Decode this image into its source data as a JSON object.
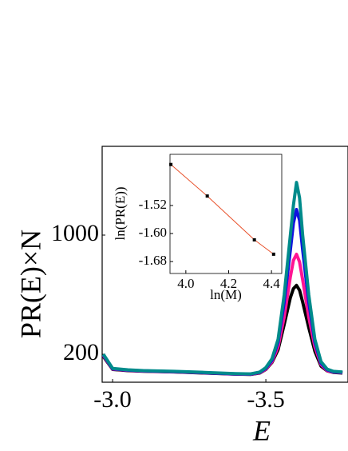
{
  "chart_data": [
    {
      "type": "line",
      "xlabel": "E",
      "ylabel": "PR(E)×N",
      "x": [
        -2.97,
        -3.0,
        -3.05,
        -3.1,
        -3.2,
        -3.3,
        -3.4,
        -3.45,
        -3.48,
        -3.5,
        -3.52,
        -3.54,
        -3.56,
        -3.58,
        -3.59,
        -3.6,
        -3.61,
        -3.62,
        -3.64,
        -3.66,
        -3.68,
        -3.7,
        -3.72,
        -3.75
      ],
      "series": [
        {
          "color": "#000000",
          "values": [
            185,
            98,
            90,
            86,
            81,
            74,
            66,
            64,
            74,
            98,
            145,
            230,
            400,
            580,
            640,
            662,
            630,
            550,
            380,
            220,
            120,
            88,
            78,
            74
          ]
        },
        {
          "color": "#ff1493",
          "values": [
            190,
            100,
            92,
            87,
            82,
            75,
            67,
            65,
            76,
            100,
            150,
            250,
            450,
            720,
            830,
            871,
            820,
            700,
            450,
            250,
            130,
            90,
            80,
            76
          ]
        },
        {
          "color": "#1010e0",
          "values": [
            195,
            102,
            93,
            88,
            83,
            76,
            68,
            66,
            78,
            105,
            160,
            280,
            550,
            900,
            1080,
            1172,
            1100,
            900,
            550,
            280,
            140,
            95,
            82,
            78
          ]
        },
        {
          "color": "#008b8b",
          "values": [
            200,
            105,
            95,
            90,
            85,
            78,
            70,
            68,
            80,
            110,
            170,
            300,
            600,
            1000,
            1200,
            1354,
            1250,
            1000,
            600,
            300,
            150,
            100,
            85,
            80
          ]
        }
      ],
      "xlim": [
        -2.966,
        -3.768
      ],
      "xticks": [
        {
          "value": -3.0,
          "label": "-3.0"
        },
        -3.5
      ],
      "ylim": [
        12,
        1596
      ],
      "yticks": [
        200,
        1000
      ]
    },
    {
      "type": "line",
      "xlabel": "ln(M)",
      "ylabel": "ln(PR(E))",
      "x": [
        3.93,
        4.1,
        4.32,
        4.41
      ],
      "series": [
        {
          "color": "#e8502a",
          "marker_color": "#000000",
          "values": [
            -1.403,
            -1.493,
            -1.618,
            -1.659
          ]
        }
      ],
      "xlim": [
        3.926,
        4.448
      ],
      "xticks": [
        {
          "value": 4.0,
          "label": "4.0"
        },
        4.2,
        4.4
      ],
      "ylim": [
        -1.714,
        -1.374
      ],
      "yticks": [
        -1.52,
        {
          "value": -1.6,
          "label": "-1.60"
        },
        -1.68
      ]
    }
  ]
}
